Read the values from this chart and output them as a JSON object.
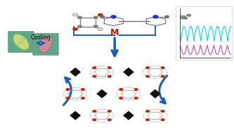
{
  "fig_width": 3.33,
  "fig_height": 1.89,
  "dpi": 100,
  "bg_color": "#ffffff",
  "arrow_blue": "#1a5fb4",
  "cooling_text": "Cooling",
  "cooling_fontsize": 5.5,
  "M_text": "M",
  "M_color": "#cc1111",
  "M_fontsize": 9,
  "crystal_bg": "#5aaa88",
  "crystal1_color": "#c8d87a",
  "crystal2_color": "#cc8899",
  "squarate_gray": "#808080",
  "squarate_red": "#cc2200",
  "squarate_white": "#e0e0e0",
  "viologen_gray": "#707070",
  "viologen_blue": "#2233cc",
  "black_diamond": "#111111",
  "red_dot": "#cc2200",
  "blue_ring": "#3366cc",
  "gray_node": "#888888",
  "pc_bg": "#ffffff",
  "pc_cyan": "#00ccdd",
  "pc_magenta": "#cc44aa"
}
